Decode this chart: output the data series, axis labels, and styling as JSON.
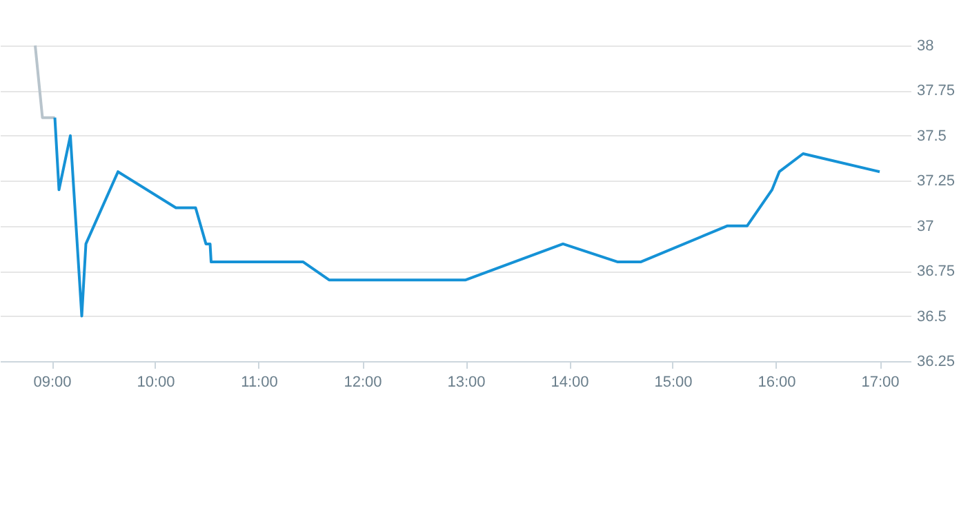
{
  "chart_data": {
    "type": "line",
    "xlim": [
      8.5,
      17.3
    ],
    "ylim": [
      36.25,
      38
    ],
    "xticks": [
      {
        "value": 9,
        "label": "09:00"
      },
      {
        "value": 10,
        "label": "10:00"
      },
      {
        "value": 11,
        "label": "11:00"
      },
      {
        "value": 12,
        "label": "12:00"
      },
      {
        "value": 13,
        "label": "13:00"
      },
      {
        "value": 14,
        "label": "14:00"
      },
      {
        "value": 15,
        "label": "15:00"
      },
      {
        "value": 16,
        "label": "16:00"
      },
      {
        "value": 17,
        "label": "17:00"
      }
    ],
    "yticks": [
      36.25,
      36.5,
      36.75,
      37,
      37.25,
      37.5,
      37.75,
      38
    ],
    "grid": "y",
    "marker": "none",
    "line_style": "solid",
    "series": [
      {
        "color": "#b8c4cc",
        "x": [
          8.84,
          8.91,
          9.03
        ],
        "values": [
          38,
          37.6,
          37.6
        ]
      },
      {
        "color": "#1592d6",
        "x": [
          9.03,
          9.07,
          9.18,
          9.29,
          9.33,
          9.64,
          10.2,
          10.39,
          10.49,
          10.53,
          10.54,
          11.43,
          11.68,
          13.0,
          13.94,
          14.47,
          14.69,
          15.53,
          15.72,
          15.96,
          16.03,
          16.26,
          17.0
        ],
        "values": [
          37.6,
          37.2,
          37.5,
          36.5,
          36.9,
          37.3,
          37.1,
          37.1,
          36.9,
          36.9,
          36.8,
          36.8,
          36.7,
          36.7,
          36.9,
          36.8,
          36.8,
          37.0,
          37.0,
          37.2,
          37.3,
          37.4,
          37.3
        ]
      }
    ]
  }
}
